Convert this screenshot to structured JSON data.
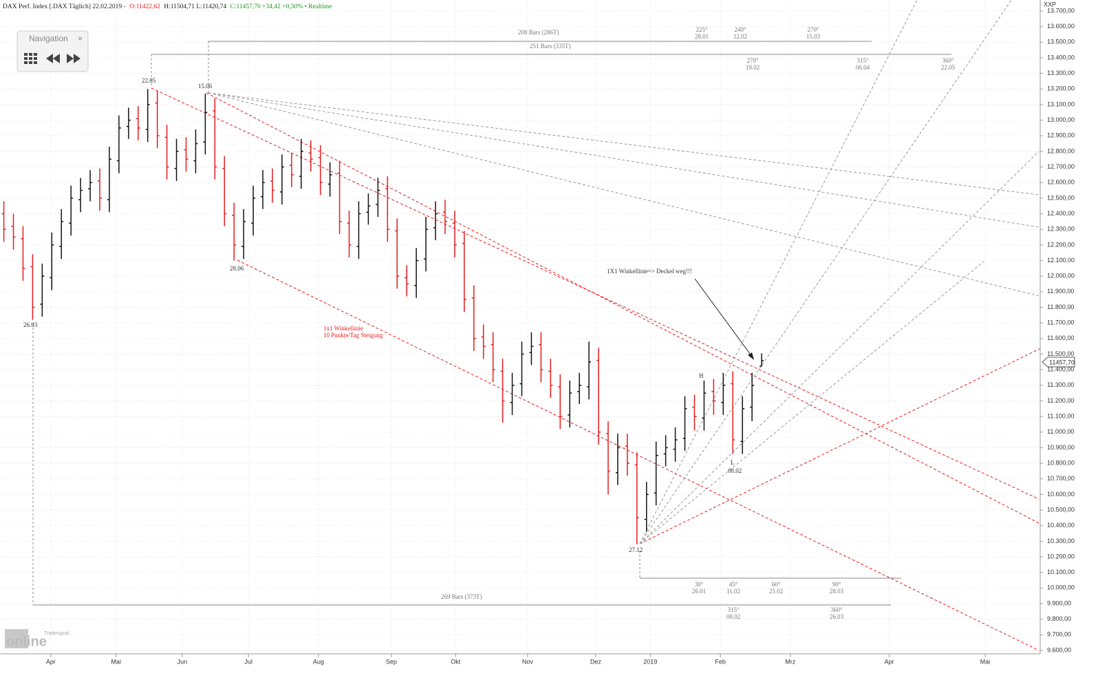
{
  "chart_data": {
    "type": "ohlc",
    "header": {
      "instrument": "DAX Perf. Index [.DAX Täglich] 22.02.2019 -",
      "open": "O:11422,62",
      "hl": "H:11504,71 L:11420,74",
      "close": "C:11457,70 +34,42 +0,30% • Realtime"
    },
    "currency": "XXP",
    "last_price_label": "11457,70",
    "up_color": "#111111",
    "down_color": "#e8191a",
    "grid": true,
    "xlim": [
      -0.4,
      107.9
    ],
    "xticks": [
      {
        "value": 4.9,
        "label": "Apr"
      },
      {
        "value": 11.7,
        "label": "Mai"
      },
      {
        "value": 18.6,
        "label": "Jun"
      },
      {
        "value": 25.5,
        "label": "Jul"
      },
      {
        "value": 32.8,
        "label": "Aug"
      },
      {
        "value": 40.4,
        "label": "Sep"
      },
      {
        "value": 47.1,
        "label": "Okt"
      },
      {
        "value": 54.6,
        "label": "Nov"
      },
      {
        "value": 61.7,
        "label": "Dez"
      },
      {
        "value": 67.4,
        "label": "2019"
      },
      {
        "value": 74.7,
        "label": "Feb"
      },
      {
        "value": 82.0,
        "label": "Mrz"
      },
      {
        "value": 92.3,
        "label": "Apr"
      },
      {
        "value": 102.3,
        "label": "Mai"
      }
    ],
    "ylim": [
      9600,
      13700
    ],
    "yticks": [
      {
        "value": 9600,
        "label": "9.600,00"
      },
      {
        "value": 9700,
        "label": "9.700,00"
      },
      {
        "value": 9800,
        "label": "9.800,00"
      },
      {
        "value": 9900,
        "label": "9.900,00"
      },
      {
        "value": 10000,
        "label": "10.000,00"
      },
      {
        "value": 10100,
        "label": "10.100,00"
      },
      {
        "value": 10200,
        "label": "10.200,00"
      },
      {
        "value": 10300,
        "label": "10.300,00"
      },
      {
        "value": 10400,
        "label": "10.400,00"
      },
      {
        "value": 10500,
        "label": "10.500,00"
      },
      {
        "value": 10600,
        "label": "10.600,00"
      },
      {
        "value": 10700,
        "label": "10.700,00"
      },
      {
        "value": 10800,
        "label": "10.800,00"
      },
      {
        "value": 10900,
        "label": "10.900,00"
      },
      {
        "value": 11000,
        "label": "11.000,00"
      },
      {
        "value": 11100,
        "label": "11.100,00"
      },
      {
        "value": 11200,
        "label": "11.200,00"
      },
      {
        "value": 11300,
        "label": "11.300,00"
      },
      {
        "value": 11400,
        "label": "11.400,00"
      },
      {
        "value": 11500,
        "label": "11.500,00"
      },
      {
        "value": 11600,
        "label": "11.600,00"
      },
      {
        "value": 11700,
        "label": "11.700,00"
      },
      {
        "value": 11800,
        "label": "11.800,00"
      },
      {
        "value": 11900,
        "label": "11.900,00"
      },
      {
        "value": 12000,
        "label": "12.000,00"
      },
      {
        "value": 12100,
        "label": "12.100,00"
      },
      {
        "value": 12200,
        "label": "12.200,00"
      },
      {
        "value": 12300,
        "label": "12.300,00"
      },
      {
        "value": 12400,
        "label": "12.400,00"
      },
      {
        "value": 12500,
        "label": "12.500,00"
      },
      {
        "value": 12600,
        "label": "12.600,00"
      },
      {
        "value": 12700,
        "label": "12.700,00"
      },
      {
        "value": 12800,
        "label": "12.800,00"
      },
      {
        "value": 12900,
        "label": "12.900,00"
      },
      {
        "value": 13000,
        "label": "13.000,00"
      },
      {
        "value": 13100,
        "label": "13.100,00"
      },
      {
        "value": 13200,
        "label": "13.200,00"
      },
      {
        "value": 13300,
        "label": "13.300,00"
      },
      {
        "value": 13400,
        "label": "13.400,00"
      },
      {
        "value": 13500,
        "label": "13.500,00"
      },
      {
        "value": 13600,
        "label": "13.600,00"
      },
      {
        "value": 13700,
        "label": "13.700,00"
      }
    ],
    "open": [
      12400,
      12320,
      12240,
      12060,
      11820,
      11990,
      12190,
      12340,
      12490,
      12560,
      12610,
      12490,
      12740,
      12960,
      13010,
      12940,
      13110,
      12890,
      12690,
      12810,
      12740,
      12860,
      13060,
      12690,
      12390,
      12190,
      12340,
      12510,
      12610,
      12540,
      12710,
      12640,
      12790,
      12760,
      12590,
      12660,
      12340,
      12190,
      12410,
      12460,
      12560,
      12290,
      11990,
      11940,
      12110,
      12310,
      12410,
      12340,
      12210,
      11860,
      11610,
      11560,
      11390,
      11190,
      11310,
      11510,
      11560,
      11390,
      11290,
      11110,
      11260,
      11290,
      11460,
      10990,
      10740,
      10910,
      10790,
      10440,
      10610,
      10860,
      10890,
      10960,
      11160,
      11090,
      11260,
      11190,
      11310,
      10940,
      11160,
      11422.62
    ],
    "high": [
      12480,
      12400,
      12320,
      12140,
      12080,
      12280,
      12430,
      12580,
      12630,
      12680,
      12690,
      12830,
      13030,
      13080,
      13090,
      13200,
      13190,
      12970,
      12880,
      12890,
      12940,
      13170,
      13140,
      12770,
      12470,
      12430,
      12580,
      12680,
      12690,
      12780,
      12790,
      12880,
      12870,
      12840,
      12730,
      12740,
      12420,
      12480,
      12530,
      12630,
      12640,
      12370,
      12070,
      12180,
      12380,
      12480,
      12490,
      12420,
      12290,
      11940,
      11690,
      11640,
      11470,
      11380,
      11580,
      11640,
      11640,
      11470,
      11370,
      11330,
      11380,
      11580,
      11540,
      11070,
      10990,
      10990,
      10870,
      10680,
      10940,
      10980,
      11030,
      11230,
      11240,
      11330,
      11340,
      11380,
      11390,
      11230,
      11380,
      11504.71
    ],
    "low": [
      12220,
      12170,
      11970,
      11720,
      11740,
      11910,
      12110,
      12260,
      12410,
      12480,
      12420,
      12410,
      12660,
      12880,
      12870,
      12860,
      12820,
      12620,
      12610,
      12670,
      12660,
      12780,
      12620,
      12320,
      12100,
      12110,
      12260,
      12430,
      12470,
      12460,
      12570,
      12560,
      12670,
      12520,
      12510,
      12270,
      12120,
      12110,
      12330,
      12380,
      12220,
      11920,
      11870,
      11860,
      12030,
      12230,
      12270,
      12120,
      11770,
      11520,
      11470,
      11320,
      11060,
      11110,
      11230,
      11430,
      11320,
      11220,
      11020,
      11030,
      11180,
      11210,
      10920,
      10600,
      10660,
      10720,
      10280,
      10360,
      10530,
      10780,
      10810,
      10880,
      11010,
      11010,
      11110,
      11110,
      10860,
      10860,
      11070,
      11420.74
    ],
    "close": [
      12300,
      12250,
      12050,
      11800,
      12000,
      12200,
      12350,
      12500,
      12550,
      12600,
      12500,
      12750,
      12950,
      13000,
      12950,
      13100,
      12900,
      12700,
      12800,
      12750,
      12850,
      13050,
      12700,
      12400,
      12200,
      12350,
      12500,
      12600,
      12550,
      12700,
      12650,
      12800,
      12750,
      12600,
      12650,
      12350,
      12200,
      12400,
      12450,
      12550,
      12300,
      12000,
      11950,
      12100,
      12300,
      12400,
      12350,
      12200,
      11850,
      11600,
      11550,
      11400,
      11200,
      11300,
      11500,
      11550,
      11400,
      11300,
      11100,
      11250,
      11300,
      11450,
      11000,
      10750,
      10900,
      10800,
      10450,
      10600,
      10850,
      10900,
      10950,
      11150,
      11100,
      11250,
      11200,
      11300,
      10950,
      11150,
      11300,
      11457.7
    ],
    "annotations": {
      "pivots": [
        "22.05",
        "15.06",
        "26.03",
        "28.06",
        "27.12",
        "08.02",
        "H",
        "L"
      ],
      "red_note": [
        "1x1 Winkellinie",
        "10 Punkte/Tag Steigung"
      ],
      "arrow_note": "1X1 Winkellinie=> Deckel weg!!!",
      "bars": [
        "208 Bars (286T)",
        "251 Bars (335T)",
        "269 Bars (373T)"
      ],
      "angles": [
        {
          "angle": "225°",
          "date": "28.01"
        },
        {
          "angle": "240°",
          "date": "12.02"
        },
        {
          "angle": "270°",
          "date": "15.03"
        },
        {
          "angle": "270°",
          "date": "19.02"
        },
        {
          "angle": "315°",
          "date": "06.04"
        },
        {
          "angle": "360°",
          "date": "22.05"
        },
        {
          "angle": "30°",
          "date": "26.01"
        },
        {
          "angle": "45°",
          "date": "11.02"
        },
        {
          "angle": "60°",
          "date": "25.02"
        },
        {
          "angle": "90°",
          "date": "28.03"
        },
        {
          "angle": "315°",
          "date": "08.02"
        },
        {
          "angle": "360°",
          "date": "26.03"
        }
      ]
    },
    "navigation": {
      "title": "Navigation",
      "close": "×"
    },
    "logo": {
      "brand": "Tradesignal",
      "word": "online"
    }
  }
}
